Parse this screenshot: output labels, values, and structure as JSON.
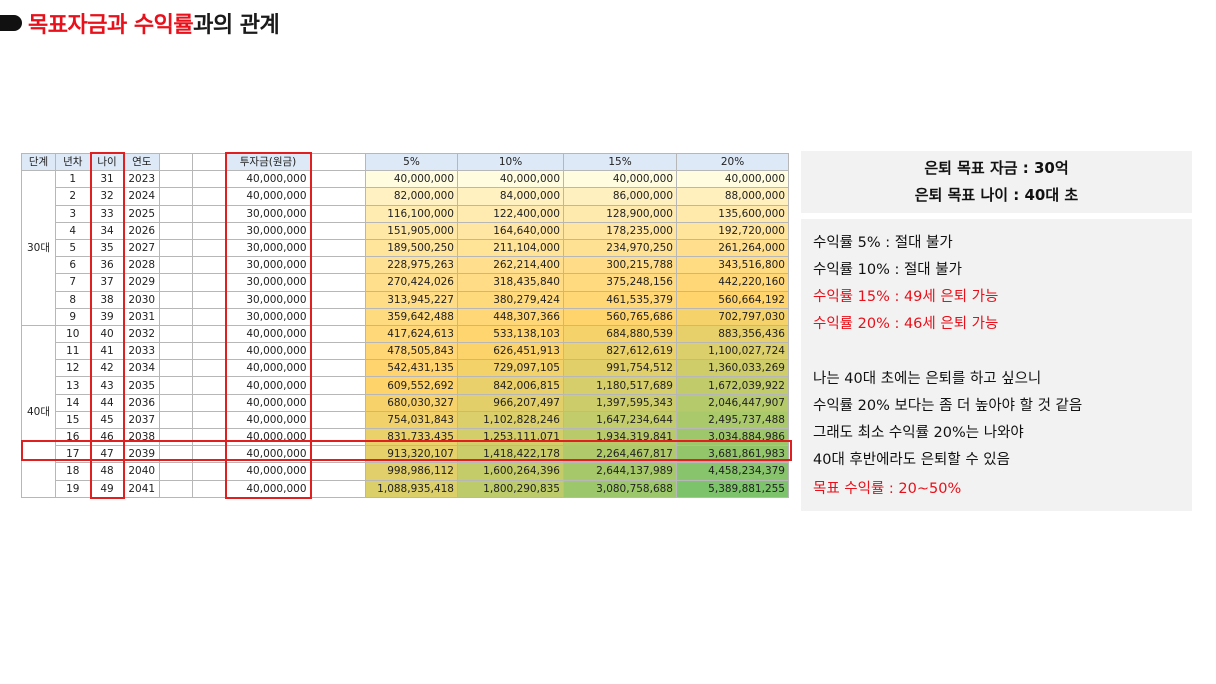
{
  "title": {
    "part1": "목표자금과 ",
    "part2": "수익률",
    "part3": "과의 관계"
  },
  "headers": {
    "stage": "단계",
    "year_no": "년차",
    "age": "나이",
    "year": "연도",
    "invest": "투자금(원금)",
    "r5": "5%",
    "r10": "10%",
    "r15": "15%",
    "r20": "20%"
  },
  "stages": [
    "30대",
    "40대"
  ],
  "rows": [
    {
      "n": "1",
      "age": "31",
      "year": "2023",
      "inv": "40,000,000",
      "r5": "40,000,000",
      "r10": "40,000,000",
      "r15": "40,000,000",
      "r20": "40,000,000"
    },
    {
      "n": "2",
      "age": "32",
      "year": "2024",
      "inv": "40,000,000",
      "r5": "82,000,000",
      "r10": "84,000,000",
      "r15": "86,000,000",
      "r20": "88,000,000"
    },
    {
      "n": "3",
      "age": "33",
      "year": "2025",
      "inv": "30,000,000",
      "r5": "116,100,000",
      "r10": "122,400,000",
      "r15": "128,900,000",
      "r20": "135,600,000"
    },
    {
      "n": "4",
      "age": "34",
      "year": "2026",
      "inv": "30,000,000",
      "r5": "151,905,000",
      "r10": "164,640,000",
      "r15": "178,235,000",
      "r20": "192,720,000"
    },
    {
      "n": "5",
      "age": "35",
      "year": "2027",
      "inv": "30,000,000",
      "r5": "189,500,250",
      "r10": "211,104,000",
      "r15": "234,970,250",
      "r20": "261,264,000"
    },
    {
      "n": "6",
      "age": "36",
      "year": "2028",
      "inv": "30,000,000",
      "r5": "228,975,263",
      "r10": "262,214,400",
      "r15": "300,215,788",
      "r20": "343,516,800"
    },
    {
      "n": "7",
      "age": "37",
      "year": "2029",
      "inv": "30,000,000",
      "r5": "270,424,026",
      "r10": "318,435,840",
      "r15": "375,248,156",
      "r20": "442,220,160"
    },
    {
      "n": "8",
      "age": "38",
      "year": "2030",
      "inv": "30,000,000",
      "r5": "313,945,227",
      "r10": "380,279,424",
      "r15": "461,535,379",
      "r20": "560,664,192"
    },
    {
      "n": "9",
      "age": "39",
      "year": "2031",
      "inv": "30,000,000",
      "r5": "359,642,488",
      "r10": "448,307,366",
      "r15": "560,765,686",
      "r20": "702,797,030"
    },
    {
      "n": "10",
      "age": "40",
      "year": "2032",
      "inv": "40,000,000",
      "r5": "417,624,613",
      "r10": "533,138,103",
      "r15": "684,880,539",
      "r20": "883,356,436"
    },
    {
      "n": "11",
      "age": "41",
      "year": "2033",
      "inv": "40,000,000",
      "r5": "478,505,843",
      "r10": "626,451,913",
      "r15": "827,612,619",
      "r20": "1,100,027,724"
    },
    {
      "n": "12",
      "age": "42",
      "year": "2034",
      "inv": "40,000,000",
      "r5": "542,431,135",
      "r10": "729,097,105",
      "r15": "991,754,512",
      "r20": "1,360,033,269"
    },
    {
      "n": "13",
      "age": "43",
      "year": "2035",
      "inv": "40,000,000",
      "r5": "609,552,692",
      "r10": "842,006,815",
      "r15": "1,180,517,689",
      "r20": "1,672,039,922"
    },
    {
      "n": "14",
      "age": "44",
      "year": "2036",
      "inv": "40,000,000",
      "r5": "680,030,327",
      "r10": "966,207,497",
      "r15": "1,397,595,343",
      "r20": "2,046,447,907"
    },
    {
      "n": "15",
      "age": "45",
      "year": "2037",
      "inv": "40,000,000",
      "r5": "754,031,843",
      "r10": "1,102,828,246",
      "r15": "1,647,234,644",
      "r20": "2,495,737,488"
    },
    {
      "n": "16",
      "age": "46",
      "year": "2038",
      "inv": "40,000,000",
      "r5": "831,733,435",
      "r10": "1,253,111,071",
      "r15": "1,934,319,841",
      "r20": "3,034,884,986"
    },
    {
      "n": "17",
      "age": "47",
      "year": "2039",
      "inv": "40,000,000",
      "r5": "913,320,107",
      "r10": "1,418,422,178",
      "r15": "2,264,467,817",
      "r20": "3,681,861,983"
    },
    {
      "n": "18",
      "age": "48",
      "year": "2040",
      "inv": "40,000,000",
      "r5": "998,986,112",
      "r10": "1,600,264,396",
      "r15": "2,644,137,989",
      "r20": "4,458,234,379"
    },
    {
      "n": "19",
      "age": "49",
      "year": "2041",
      "inv": "40,000,000",
      "r5": "1,088,935,418",
      "r10": "1,800,290,835",
      "r15": "3,080,758,688",
      "r20": "5,389,881,255"
    }
  ],
  "colors": {
    "title_red": "#e8101a",
    "highlight": "#e02020",
    "header_fill": "#dde9f7",
    "panel": "#f2f2f2"
  },
  "panel_top": {
    "line1": "은퇴 목표 자금 : 30억",
    "line2": "은퇴 목표 나이 : 40대 초"
  },
  "panel_bottom": {
    "l1": "수익률 5% : 절대 불가",
    "l2": "수익률 10% : 절대 불가",
    "l3": "수익률 15% : 49세 은퇴 가능",
    "l4": "수익률 20% : 46세 은퇴 가능",
    "l5": "나는 40대 초에는 은퇴를 하고 싶으니",
    "l6": "수익률 20% 보다는 좀 더 높아야 할 것 같음",
    "l7": "그래도 최소 수익률 20%는 나와야",
    "l8": "40대 후반에라도 은퇴할 수 있음",
    "l9": "목표 수익률 : 20~50%"
  }
}
